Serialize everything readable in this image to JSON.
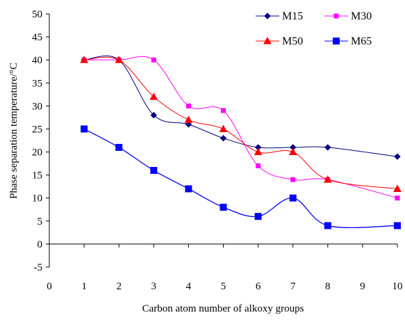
{
  "chart_data": {
    "type": "line",
    "xlabel": "Carbon atom number of alkoxy groups",
    "ylabel": "Phase separation temperature/°C",
    "xlim": [
      0,
      10
    ],
    "ylim": [
      -5,
      50
    ],
    "x_ticks": [
      "0",
      "1",
      "2",
      "3",
      "4",
      "5",
      "6",
      "7",
      "8",
      "9",
      "10"
    ],
    "y_ticks": [
      "-5",
      "0",
      "5",
      "10",
      "15",
      "20",
      "25",
      "30",
      "35",
      "40",
      "45",
      "50"
    ],
    "grid": false,
    "legend_position": "top-right",
    "smooth": true,
    "series": [
      {
        "name": "M15",
        "color": "#000080",
        "marker": "diamond",
        "x": [
          1,
          2,
          3,
          4,
          5,
          6,
          7,
          8,
          10
        ],
        "values": [
          40,
          40,
          28,
          26,
          23,
          21,
          21,
          21,
          19
        ]
      },
      {
        "name": "M30",
        "color": "#ff00ff",
        "marker": "square",
        "x": [
          1,
          2,
          3,
          4,
          5,
          6,
          7,
          8,
          10
        ],
        "values": [
          40,
          40,
          40,
          30,
          29,
          17,
          14,
          14,
          10
        ]
      },
      {
        "name": "M50",
        "color": "#ff0000",
        "marker": "triangle",
        "x": [
          1,
          2,
          3,
          4,
          5,
          6,
          7,
          8,
          10
        ],
        "values": [
          40,
          40,
          32,
          27,
          25,
          20,
          20,
          14,
          12
        ]
      },
      {
        "name": "M65",
        "color": "#0000ff",
        "marker": "square-large",
        "x": [
          1,
          2,
          3,
          4,
          5,
          6,
          7,
          8,
          10
        ],
        "values": [
          25,
          21,
          16,
          12,
          8,
          6,
          10,
          4,
          4
        ]
      }
    ]
  }
}
